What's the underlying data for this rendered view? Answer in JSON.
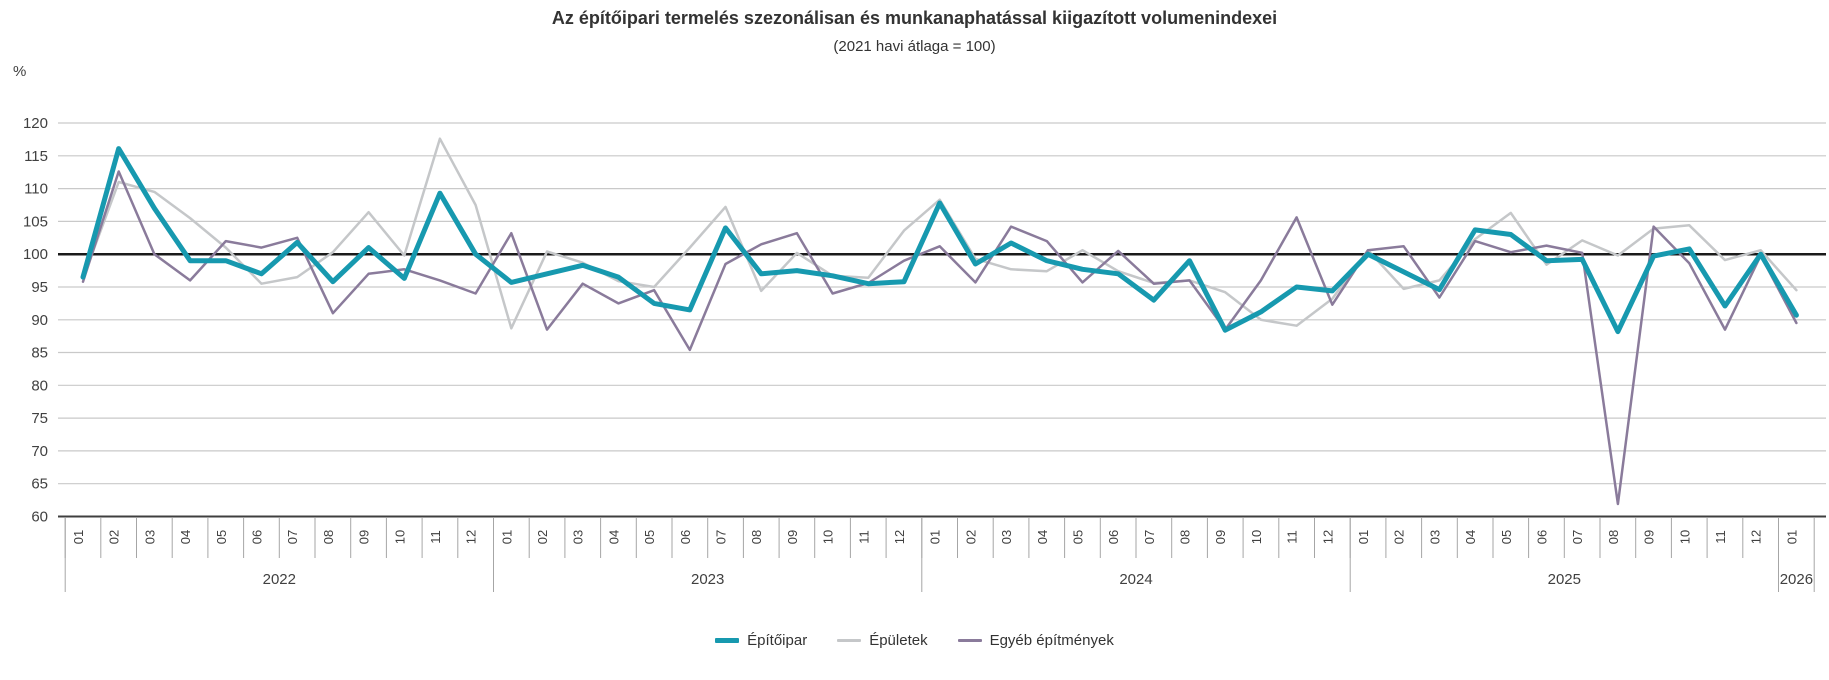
{
  "title": "Az építőipari termelés szezonálisan és munkanaphatással kiigazított volumenindexei",
  "subtitle": "(2021 havi átlaga = 100)",
  "y_axis": {
    "unit": "%",
    "min": 60,
    "max": 120,
    "step": 5,
    "reference_line": 100
  },
  "x_axis": {
    "years": [
      {
        "label": "2022",
        "months": [
          "01",
          "02",
          "03",
          "04",
          "05",
          "06",
          "07",
          "08",
          "09",
          "10",
          "11",
          "12"
        ]
      },
      {
        "label": "2023",
        "months": [
          "01",
          "02",
          "03",
          "04",
          "05",
          "06",
          "07",
          "08",
          "09",
          "10",
          "11",
          "12"
        ]
      },
      {
        "label": "2024",
        "months": [
          "01",
          "02",
          "03",
          "04",
          "05",
          "06",
          "07",
          "08",
          "09",
          "10",
          "11",
          "12"
        ]
      },
      {
        "label": "2025",
        "months": [
          "01",
          "02",
          "03",
          "04",
          "05",
          "06",
          "07",
          "08",
          "09",
          "10",
          "11",
          "12"
        ]
      },
      {
        "label": "2026",
        "months": [
          "01"
        ]
      }
    ]
  },
  "legend": [
    {
      "label": "Építőipar",
      "color": "#1799af",
      "thick": true
    },
    {
      "label": "Épületek",
      "color": "#c5c7c9",
      "thick": false
    },
    {
      "label": "Egyéb építmények",
      "color": "#8a7b9b",
      "thick": false
    }
  ],
  "colors": {
    "grid": "#c9c9c9",
    "reference_line": "#1a1a1a",
    "axis_baseline": "#3f3f3f",
    "ticks": "#a6a6a6",
    "text": "#404040"
  },
  "chart_data": {
    "type": "line",
    "title": "Az építőipari termelés szezonálisan és munkanaphatással kiigazított volumenindexei",
    "subtitle": "(2021 havi átlaga = 100)",
    "ylabel": "%",
    "ylim": [
      60,
      120
    ],
    "ytick_step": 5,
    "reference_line": 100,
    "grid": true,
    "legend_position": "bottom",
    "x": [
      "2022-01",
      "2022-02",
      "2022-03",
      "2022-04",
      "2022-05",
      "2022-06",
      "2022-07",
      "2022-08",
      "2022-09",
      "2022-10",
      "2022-11",
      "2022-12",
      "2023-01",
      "2023-02",
      "2023-03",
      "2023-04",
      "2023-05",
      "2023-06",
      "2023-07",
      "2023-08",
      "2023-09",
      "2023-10",
      "2023-11",
      "2023-12",
      "2024-01",
      "2024-02",
      "2024-03",
      "2024-04",
      "2024-05",
      "2024-06",
      "2024-07",
      "2024-08",
      "2024-09",
      "2024-10",
      "2024-11",
      "2024-12",
      "2025-01",
      "2025-02",
      "2025-03",
      "2025-04",
      "2025-05",
      "2025-06",
      "2025-07",
      "2025-08",
      "2025-09",
      "2025-10",
      "2025-11",
      "2025-12",
      "2026-01"
    ],
    "series": [
      {
        "name": "Építőipar",
        "color": "#1799af",
        "values": [
          96.5,
          116.1,
          107,
          99,
          99,
          97,
          101.8,
          95.8,
          101,
          96.3,
          109.3,
          100,
          95.7,
          97,
          98.3,
          96.5,
          92.5,
          91.5,
          104,
          97,
          97.5,
          96.7,
          95.5,
          95.8,
          107.8,
          98.5,
          101.7,
          99,
          97.7,
          97,
          93,
          99,
          88.4,
          91.2,
          95,
          94.4,
          100,
          97.3,
          94.6,
          103.7,
          103,
          99,
          99.2,
          88.2,
          99.7,
          100.8,
          92.1,
          100,
          90.7
        ]
      },
      {
        "name": "Épületek",
        "color": "#c5c7c9",
        "values": [
          96.3,
          111,
          109.5,
          105.5,
          101,
          95.5,
          96.5,
          100.3,
          106.4,
          99.8,
          117.6,
          107.5,
          88.7,
          100.4,
          98.7,
          95.9,
          95,
          101,
          107.2,
          94.4,
          100.2,
          96.7,
          96.4,
          103.6,
          108.3,
          99.3,
          97.7,
          97.4,
          100.6,
          97.4,
          95.6,
          96,
          94.2,
          90,
          89.1,
          93.2,
          100.6,
          94.7,
          96,
          102.3,
          106.3,
          98.4,
          102.1,
          99.8,
          103.9,
          104.4,
          99.1,
          100.6,
          94.5
        ]
      },
      {
        "name": "Egyéb építmények",
        "color": "#8a7b9b",
        "values": [
          95.8,
          112.6,
          100,
          96,
          102,
          101,
          102.5,
          91,
          97,
          97.7,
          96,
          94,
          103.2,
          88.5,
          95.5,
          92.5,
          94.5,
          85.4,
          98.5,
          101.5,
          103.2,
          94,
          95.6,
          99,
          101.2,
          95.7,
          104.2,
          102,
          95.7,
          100.5,
          95.5,
          96,
          88.5,
          96,
          105.6,
          92.3,
          100.6,
          101.2,
          93.4,
          102,
          100.3,
          101.3,
          100.2,
          61.9,
          104.2,
          98.6,
          88.5,
          99.8,
          89.5
        ]
      }
    ]
  }
}
